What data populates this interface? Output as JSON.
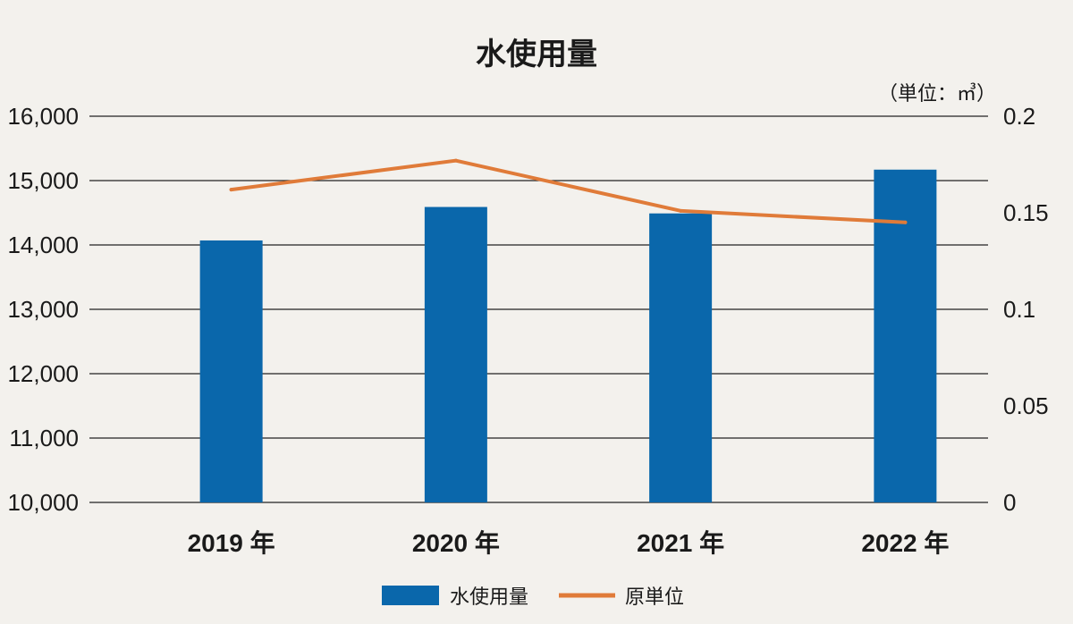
{
  "chart_data": {
    "type": "bar",
    "title": "水使用量",
    "unit_label": "（単位：㎥）",
    "categories": [
      "2019 年",
      "2020 年",
      "2021 年",
      "2022 年"
    ],
    "series": [
      {
        "name": "水使用量",
        "type": "bar",
        "axis": "left",
        "color": "#0a67ab",
        "values": [
          14070,
          14590,
          14490,
          15170
        ]
      },
      {
        "name": "原単位",
        "type": "line",
        "axis": "right",
        "color": "#e07b39",
        "values": [
          0.162,
          0.177,
          0.151,
          0.145
        ]
      }
    ],
    "y_left": {
      "ylim": [
        10000,
        16000
      ],
      "ticks": [
        16000,
        15000,
        14000,
        13000,
        12000,
        11000,
        10000
      ],
      "tick_labels": [
        "16,000",
        "15,000",
        "14,000",
        "13,000",
        "12,000",
        "11,000",
        "10,000"
      ]
    },
    "y_right": {
      "ylim": [
        0,
        0.2
      ],
      "ticks": [
        0.2,
        0.15,
        0.1,
        0.05,
        0
      ],
      "tick_labels": [
        "0.2",
        "0.15",
        "0.1",
        "0.05",
        "0"
      ]
    },
    "grid": true,
    "legend": "bottom-center"
  }
}
